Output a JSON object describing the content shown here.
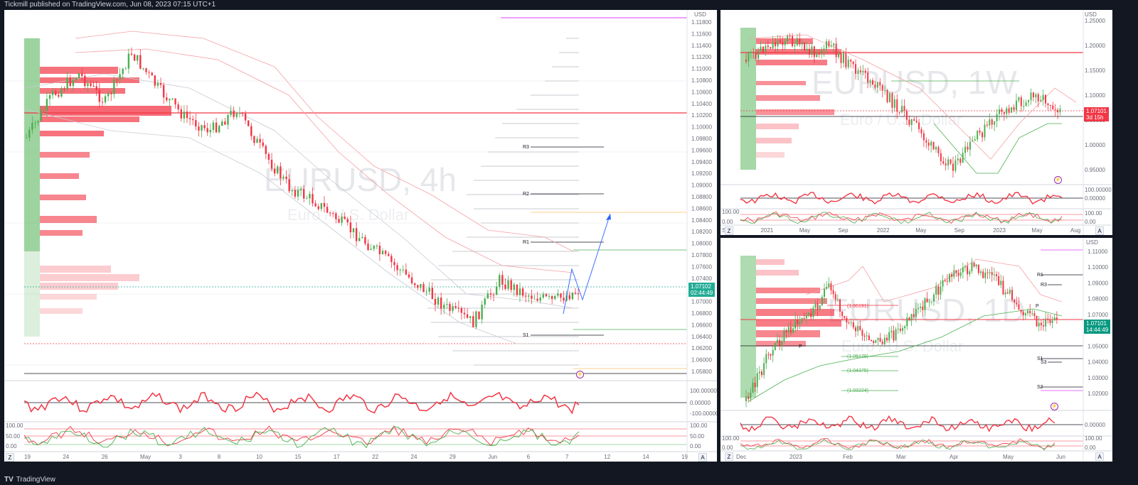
{
  "header": {
    "publisher_text": "Tickmill published on TradingView.com, Jun 08, 2023 07:15 UTC+1"
  },
  "footer": {
    "brand": "TradingView",
    "logo_glyph": "TV"
  },
  "panels": {
    "main": {
      "symbol": "EURUSD, 4h",
      "description": "Euro / U.S. Dollar",
      "currency": "USD",
      "price_tag": {
        "price": "1.07102",
        "countdown": "02:44:49"
      },
      "price_axis": [
        "1.11800",
        "1.11600",
        "1.11400",
        "1.11200",
        "1.11000",
        "1.10800",
        "1.10600",
        "1.10400",
        "1.10200",
        "1.10000",
        "1.09800",
        "1.09600",
        "1.09400",
        "1.09200",
        "1.09000",
        "1.08800",
        "1.08600",
        "1.08400",
        "1.08200",
        "1.08000",
        "1.07800",
        "1.07600",
        "1.07400",
        "1.07200",
        "1.07000",
        "1.06800",
        "1.06600",
        "1.06400",
        "1.06200",
        "1.06000",
        "1.05800"
      ],
      "time_axis": [
        "19",
        "24",
        "26",
        "May",
        "3",
        "8",
        "10",
        "15",
        "17",
        "22",
        "24",
        "29",
        "Jun",
        "6",
        "7",
        "12",
        "14",
        "19"
      ],
      "pivots": [
        "R3",
        "R2",
        "R1",
        "S1"
      ],
      "rsi_axis": [
        "100.00000",
        "0.00000",
        "-100.00000"
      ],
      "stoch_axis": [
        "100.00",
        "50.00",
        "0.00"
      ],
      "corner_buttons": {
        "left": "Z",
        "right": "A"
      },
      "event_icon": "flash-icon"
    },
    "weekly": {
      "symbol": "EURUSD, 1W",
      "description": "Euro / U.S. Dollar",
      "currency": "USD",
      "price_tag": {
        "price": "1.07101",
        "countdown": "3d 15h"
      },
      "price_axis": [
        "1.25000",
        "1.20000",
        "1.15000",
        "1.10000",
        "1.05000",
        "1.00000",
        "0.95000"
      ],
      "time_axis": [
        "Sep",
        "2021",
        "May",
        "Sep",
        "2022",
        "May",
        "Sep",
        "2023",
        "May",
        "Aug"
      ],
      "rsi_axis": [
        "100.00000",
        "0.00000"
      ],
      "stoch_axis": [
        "100.00",
        "0.00"
      ],
      "corner_buttons": {
        "left": "Z",
        "right": "A"
      },
      "event_icon": "flash-icon"
    },
    "daily": {
      "symbol": "EURUSD, 1D",
      "description": "Euro / U.S. Dollar",
      "currency": "USD",
      "price_tag": {
        "price": "1.07101",
        "countdown": "14:44:49"
      },
      "price_axis": [
        "1.11000",
        "1.10000",
        "1.09000",
        "1.08000",
        "1.07000",
        "1.06000",
        "1.05000",
        "1.04000",
        "1.03000",
        "1.02000"
      ],
      "time_axis": [
        "Dec",
        "2023",
        "Feb",
        "Mar",
        "Apr",
        "May",
        "Jun"
      ],
      "pivots": [
        "R1",
        "R3",
        "P",
        "P",
        "S1",
        "S3",
        "S2"
      ],
      "fib_labels": [
        "(1.06191)",
        "(1.05170)",
        "(1.04375)",
        "(1.03224)"
      ],
      "rsi_axis": [
        "0.00000"
      ],
      "stoch_axis": [
        "100.00",
        "0.00"
      ],
      "corner_buttons": {
        "left": "Z",
        "right": "A"
      },
      "event_icon": "flash-icon"
    }
  },
  "colors": {
    "bull": "#4caf50",
    "bear": "#f23645",
    "bg": "#131722",
    "panel": "#ffffff",
    "tag_main": "#22ab94",
    "tag_weekly": "#f23645",
    "tag_daily": "#089981",
    "accent_magenta": "#e040fb",
    "accent_orange": "#ff9800",
    "accent_blue": "#2962ff"
  }
}
